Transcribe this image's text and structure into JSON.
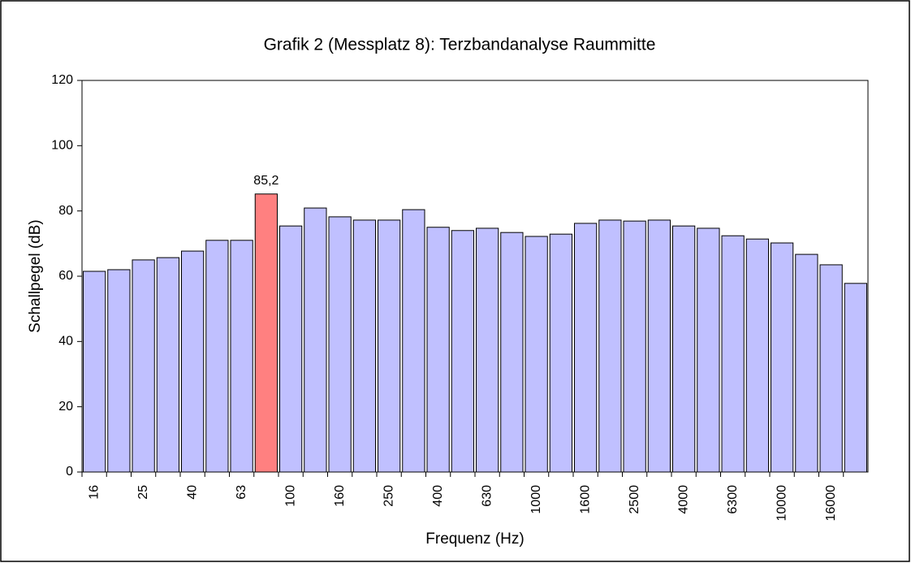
{
  "chart_data": {
    "type": "bar",
    "title": "Grafik 2 (Messplatz 8): Terzbandanalyse Raummitte",
    "x_label": "Frequenz (Hz)",
    "y_label": "Schallpegel (dB)",
    "categories": [
      "16",
      null,
      "25",
      null,
      "40",
      null,
      "63",
      null,
      "100",
      null,
      "160",
      null,
      "250",
      null,
      "400",
      null,
      "630",
      null,
      "1000",
      null,
      "1600",
      null,
      "2500",
      null,
      "4000",
      null,
      "6300",
      null,
      "10000",
      null,
      "16000",
      null
    ],
    "values": [
      61.5,
      62,
      65,
      65.7,
      67.7,
      71,
      71,
      85.2,
      75.4,
      80.9,
      78.2,
      77.2,
      77.2,
      80.4,
      75,
      74,
      74.7,
      73.4,
      72.2,
      72.9,
      76.2,
      77.2,
      76.9,
      77.2,
      75.4,
      74.7,
      72.4,
      71.4,
      70.2,
      66.7,
      63.5,
      57.8
    ],
    "value_labels": [
      null,
      null,
      null,
      null,
      null,
      null,
      null,
      "85,2",
      null,
      null,
      null,
      null,
      null,
      null,
      null,
      null,
      null,
      null,
      null,
      null,
      null,
      null,
      null,
      null,
      null,
      null,
      null,
      null,
      null,
      null,
      null,
      null
    ],
    "colors": [
      "#c0c0ff",
      "#c0c0ff",
      "#c0c0ff",
      "#c0c0ff",
      "#c0c0ff",
      "#c0c0ff",
      "#c0c0ff",
      "#ff8080",
      "#c0c0ff",
      "#c0c0ff",
      "#c0c0ff",
      "#c0c0ff",
      "#c0c0ff",
      "#c0c0ff",
      "#c0c0ff",
      "#c0c0ff",
      "#c0c0ff",
      "#c0c0ff",
      "#c0c0ff",
      "#c0c0ff",
      "#c0c0ff",
      "#c0c0ff",
      "#c0c0ff",
      "#c0c0ff",
      "#c0c0ff",
      "#c0c0ff",
      "#c0c0ff",
      "#c0c0ff",
      "#c0c0ff",
      "#c0c0ff",
      "#c0c0ff",
      "#c0c0ff"
    ],
    "ylim": [
      0,
      120
    ],
    "yticks": [
      0,
      20,
      40,
      60,
      80,
      100,
      120
    ],
    "grid": false
  }
}
